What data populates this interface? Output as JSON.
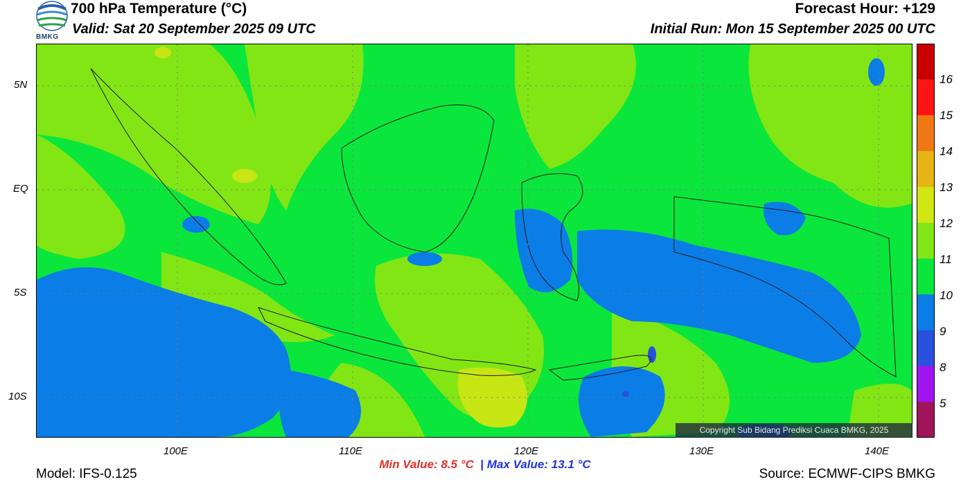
{
  "header": {
    "title": "700 hPa Temperature (°C)",
    "valid": "Valid: Sat 20 September 2025 09 UTC",
    "forecast_hour": "Forecast Hour: +129",
    "initial_run": "Initial Run: Mon 15 September 2025 00 UTC",
    "logo_text": "BMKG"
  },
  "map": {
    "lat_labels": [
      "5N",
      "EQ",
      "5S",
      "10S"
    ],
    "lon_labels": [
      "100E",
      "110E",
      "120E",
      "130E",
      "140E"
    ],
    "lat_range": [
      -12,
      6.2
    ],
    "lon_range": [
      92,
      142
    ],
    "copyright": "Copyright Sub Bidang Prediksi Cuaca BMKG, 2025",
    "colors": {
      "c_9_10": "#0a7de6",
      "c_10_11": "#0ae63c",
      "c_11_12": "#82e614",
      "c_12_13": "#c8e614",
      "c_8_9": "#2850dc"
    }
  },
  "colorbar": {
    "labels": [
      "16",
      "15",
      "14",
      "13",
      "12",
      "11",
      "10",
      "9",
      "8",
      "5"
    ],
    "colors": [
      "#c80000",
      "#ff1414",
      "#f07814",
      "#e6b414",
      "#d2e614",
      "#82e614",
      "#0ae63c",
      "#0a7de6",
      "#2850dc",
      "#a014f0",
      "#a0145a"
    ]
  },
  "footer": {
    "min_label": "Min Value:",
    "min_value": "8.5",
    "max_label": "Max Value:",
    "max_value": "13.1",
    "unit": "°C",
    "separator": "|",
    "model": "Model: IFS-0.125",
    "source": "Source: ECMWF-CIPS BMKG"
  }
}
